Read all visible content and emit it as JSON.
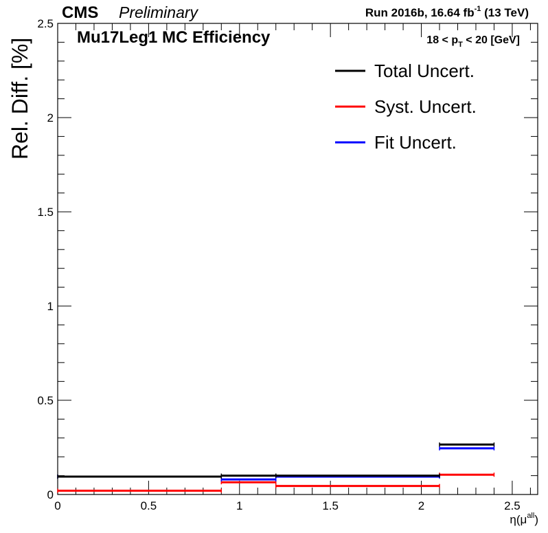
{
  "header": {
    "experiment": "CMS",
    "status": "Preliminary",
    "run_label": "Run 2016b,  16.64 fb",
    "lumi_exponent": "-1",
    "energy": "(13 TeV)"
  },
  "chart_data": {
    "type": "line",
    "title": "Mu17Leg1 MC Efficiency",
    "pt_bin_label": {
      "prefix": "18 < p",
      "subscript": "T",
      "suffix": " < 20 [GeV]"
    },
    "ylabel": "Rel. Diff. [%]",
    "xlabel": {
      "base": "η(μ",
      "superscript": "all",
      "close": ")"
    },
    "xlim": [
      0,
      2.64
    ],
    "ylim": [
      0,
      2.5
    ],
    "x_ticks": [
      "0",
      "0.5",
      "1",
      "1.5",
      "2",
      "2.5"
    ],
    "y_ticks": [
      "0",
      "0.5",
      "1",
      "1.5",
      "2",
      "2.5"
    ],
    "grid": false,
    "legend_position": "top-right",
    "bin_edges": [
      0,
      0.9,
      1.2,
      2.1,
      2.4
    ],
    "series": [
      {
        "name": "Total Uncert.",
        "color": "#000000",
        "values": [
          0.095,
          0.1,
          0.1,
          0.265
        ]
      },
      {
        "name": "Syst. Uncert.",
        "color": "#ff0000",
        "values": [
          0.02,
          0.065,
          0.045,
          0.105
        ]
      },
      {
        "name": "Fit Uncert.",
        "color": "#0000ff",
        "values": [
          0.095,
          0.08,
          0.095,
          0.245
        ]
      }
    ]
  }
}
